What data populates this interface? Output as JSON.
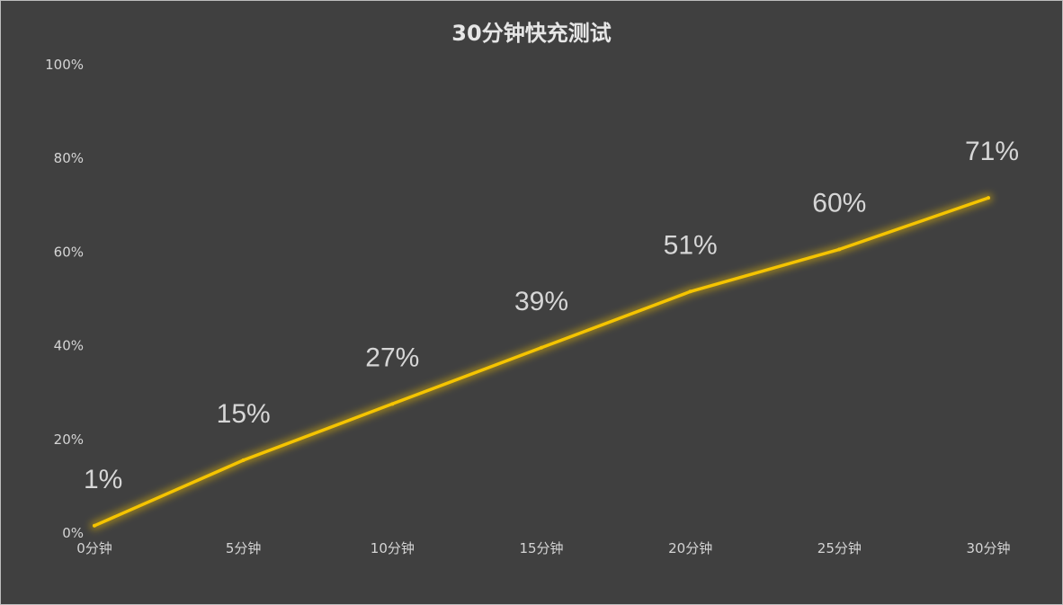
{
  "chart_data": {
    "type": "line",
    "title": "30分钟快充测试",
    "xlabel": "",
    "ylabel": "",
    "categories": [
      "0分钟",
      "5分钟",
      "10分钟",
      "15分钟",
      "20分钟",
      "25分钟",
      "30分钟"
    ],
    "series": [
      {
        "values": [
          1,
          15,
          27,
          39,
          51,
          60,
          71
        ],
        "color": "#f5c400"
      }
    ],
    "data_labels": [
      "1%",
      "15%",
      "27%",
      "39%",
      "51%",
      "60%",
      "71%"
    ],
    "ylim": [
      0,
      100
    ],
    "yticks": [
      "0%",
      "20%",
      "40%",
      "60%",
      "80%",
      "100%"
    ],
    "ytick_values": [
      0,
      20,
      40,
      60,
      80,
      100
    ],
    "grid": false,
    "legend": "none",
    "background": "#404040"
  }
}
